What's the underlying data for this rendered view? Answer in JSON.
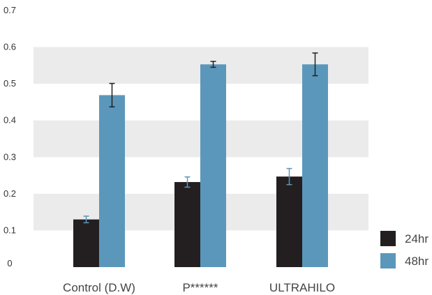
{
  "chart_data": {
    "type": "bar",
    "categories": [
      "Control (D.W)",
      "P******",
      "ULTRAHILO"
    ],
    "series": [
      {
        "name": "24hr",
        "color": "#231f20",
        "values": [
          0.13,
          0.232,
          0.247
        ],
        "errors": [
          0.009,
          0.014,
          0.022
        ]
      },
      {
        "name": "48hr",
        "color": "#5b97bb",
        "values": [
          0.469,
          0.553,
          0.553
        ],
        "errors": [
          0.032,
          0.008,
          0.031
        ]
      }
    ],
    "ylim": [
      0,
      0.7
    ],
    "yticks": [
      "0",
      "0.1",
      "0.2",
      "0.3",
      "0.4",
      "0.5",
      "0.6",
      "0.7"
    ],
    "grid": "alternating horizontal bands",
    "band_color": "#ebebeb",
    "legend_position": "bottom-right",
    "title": "",
    "xlabel": "",
    "ylabel": ""
  }
}
